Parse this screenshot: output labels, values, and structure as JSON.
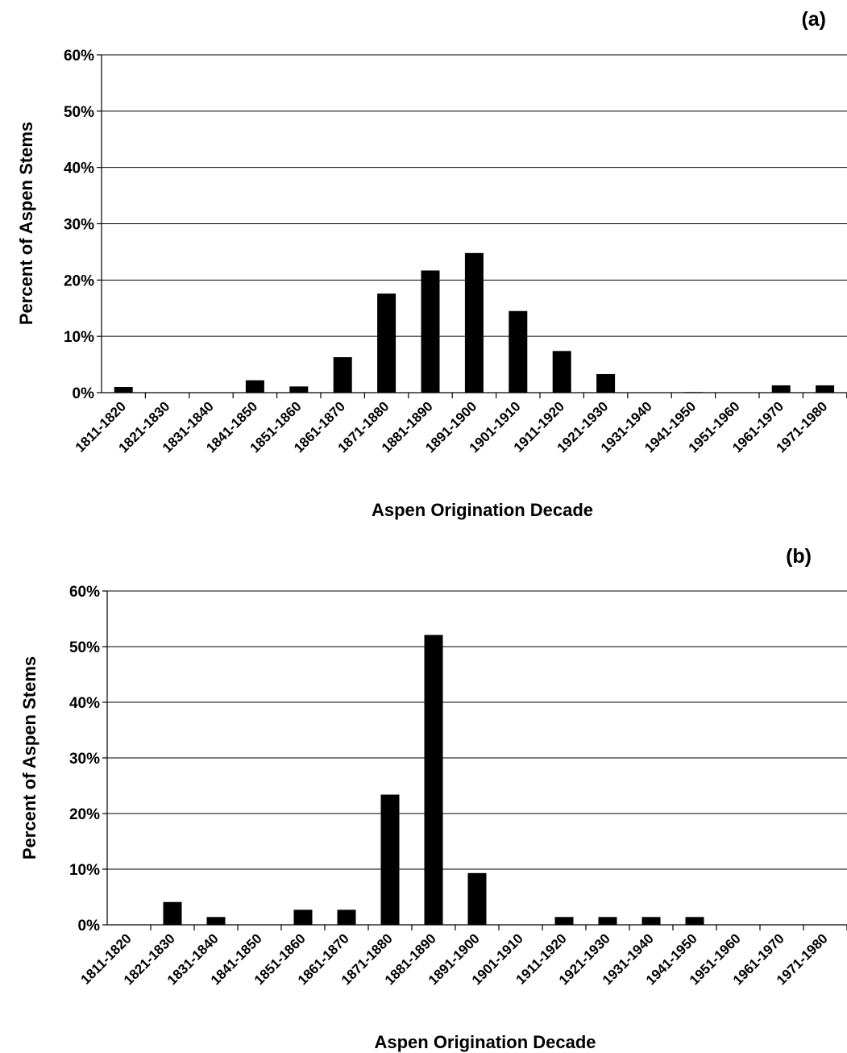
{
  "chart_data": [
    {
      "type": "bar",
      "panel_label": "(a)",
      "categories": [
        "1811-1820",
        "1821-1830",
        "1831-1840",
        "1841-1850",
        "1851-1860",
        "1861-1870",
        "1871-1880",
        "1881-1890",
        "1891-1900",
        "1901-1910",
        "1911-1920",
        "1921-1930",
        "1931-1940",
        "1941-1950",
        "1951-1960",
        "1961-1970",
        "1971-1980"
      ],
      "values": [
        1,
        0,
        0,
        2.2,
        1.1,
        6.3,
        17.6,
        21.7,
        24.8,
        14.5,
        7.4,
        3.3,
        0,
        0.1,
        0,
        1.3,
        1.3
      ],
      "xlabel": "Aspen Origination Decade",
      "ylabel": "Percent of Aspen Stems",
      "ylim": [
        0,
        60
      ],
      "yticks": [
        "0%",
        "10%",
        "20%",
        "30%",
        "40%",
        "50%",
        "60%"
      ],
      "grid": true,
      "legend": "none"
    },
    {
      "type": "bar",
      "panel_label": "(b)",
      "categories": [
        "1811-1820",
        "1821-1830",
        "1831-1840",
        "1841-1850",
        "1851-1860",
        "1861-1870",
        "1871-1880",
        "1881-1890",
        "1891-1900",
        "1901-1910",
        "1911-1920",
        "1921-1930",
        "1931-1940",
        "1941-1950",
        "1951-1960",
        "1961-1970",
        "1971-1980"
      ],
      "values": [
        0,
        4.1,
        1.4,
        0,
        2.7,
        2.7,
        23.4,
        52.1,
        9.3,
        0,
        1.4,
        1.4,
        1.4,
        1.4,
        0,
        0,
        0
      ],
      "xlabel": "Aspen Origination Decade",
      "ylabel": "Percent of Aspen Stems",
      "ylim": [
        0,
        60
      ],
      "yticks": [
        "0%",
        "10%",
        "20%",
        "30%",
        "40%",
        "50%",
        "60%"
      ],
      "grid": true,
      "legend": "none"
    }
  ]
}
